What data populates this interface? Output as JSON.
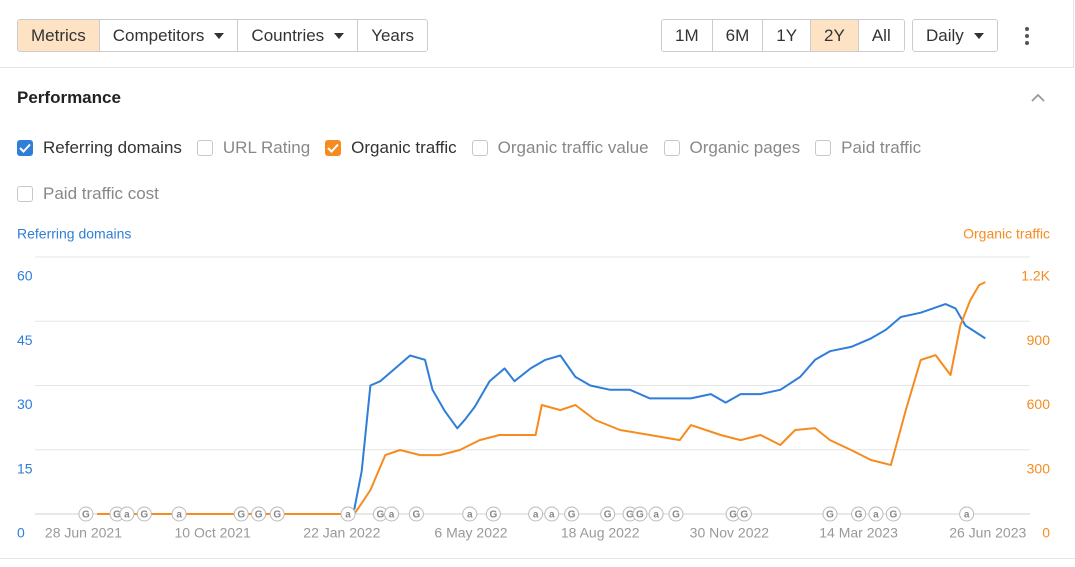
{
  "toolbar": {
    "filters": [
      {
        "label": "Metrics",
        "active": true
      },
      {
        "label": "Competitors",
        "dropdown": true
      },
      {
        "label": "Countries",
        "dropdown": true
      },
      {
        "label": "Years"
      }
    ],
    "ranges": [
      {
        "label": "1M"
      },
      {
        "label": "6M"
      },
      {
        "label": "1Y"
      },
      {
        "label": "2Y",
        "active": true
      },
      {
        "label": "All"
      }
    ],
    "interval": {
      "label": "Daily",
      "dropdown": true
    }
  },
  "section": {
    "title": "Performance",
    "metrics": [
      {
        "label": "Referring domains",
        "checked": true,
        "color": "#2f7ed8"
      },
      {
        "label": "URL Rating",
        "checked": false
      },
      {
        "label": "Organic traffic",
        "checked": true,
        "color": "#f68b1f"
      },
      {
        "label": "Organic traffic value",
        "checked": false
      },
      {
        "label": "Organic pages",
        "checked": false
      },
      {
        "label": "Paid traffic",
        "checked": false
      },
      {
        "label": "Paid traffic cost",
        "checked": false
      }
    ]
  },
  "chart_data": {
    "type": "line",
    "grid": true,
    "xlim": [
      "2021-05-20",
      "2023-07-30"
    ],
    "xticks": [
      {
        "value": "2021-06-28",
        "label": "28 Jun 2021"
      },
      {
        "value": "2021-10-10",
        "label": "10 Oct 2021"
      },
      {
        "value": "2022-01-22",
        "label": "22 Jan 2022"
      },
      {
        "value": "2022-05-06",
        "label": "6 May 2022"
      },
      {
        "value": "2022-08-18",
        "label": "18 Aug 2022"
      },
      {
        "value": "2022-11-30",
        "label": "30 Nov 2022"
      },
      {
        "value": "2023-03-14",
        "label": "14 Mar 2023"
      },
      {
        "value": "2023-06-26",
        "label": "26 Jun 2023"
      }
    ],
    "ylim": [
      0,
      60
    ],
    "yticks": [
      0,
      15,
      30,
      45,
      60
    ],
    "y2lim": [
      0,
      1200
    ],
    "y2ticks": [
      0,
      300,
      600,
      900,
      {
        "value": 1200,
        "label": "1.2K"
      }
    ],
    "series": [
      {
        "name": "Referring domains",
        "color": "#2f7ed8",
        "x": [
          "2022-02-01",
          "2022-02-07",
          "2022-02-14",
          "2022-02-22",
          "2022-03-06",
          "2022-03-18",
          "2022-03-30",
          "2022-04-05",
          "2022-04-15",
          "2022-04-25",
          "2022-05-01",
          "2022-05-09",
          "2022-05-21",
          "2022-06-02",
          "2022-06-10",
          "2022-06-23",
          "2022-07-05",
          "2022-07-17",
          "2022-07-29",
          "2022-08-10",
          "2022-08-26",
          "2022-09-11",
          "2022-09-27",
          "2022-10-13",
          "2022-10-30",
          "2022-11-15",
          "2022-11-27",
          "2022-12-09",
          "2022-12-25",
          "2023-01-10",
          "2023-01-26",
          "2023-02-07",
          "2023-02-19",
          "2023-03-08",
          "2023-03-24",
          "2023-04-05",
          "2023-04-17",
          "2023-05-03",
          "2023-05-23",
          "2023-05-31",
          "2023-06-08",
          "2023-06-24"
        ],
        "values": [
          1,
          10,
          30,
          31,
          34,
          37,
          36,
          29,
          24,
          20,
          22,
          25,
          31,
          34,
          31,
          34,
          36,
          37,
          32,
          30,
          29,
          29,
          27,
          27,
          27,
          28,
          26,
          28,
          28,
          29,
          32,
          36,
          38,
          39,
          41,
          43,
          46,
          47,
          49,
          48,
          44,
          41
        ]
      },
      {
        "name": "Organic traffic",
        "color": "#f68b1f",
        "axis": "y2",
        "x": [
          "2021-07-09",
          "2022-02-01",
          "2022-02-06",
          "2022-02-14",
          "2022-02-26",
          "2022-03-10",
          "2022-03-26",
          "2022-04-11",
          "2022-04-27",
          "2022-05-13",
          "2022-05-29",
          "2022-06-27",
          "2022-07-02",
          "2022-07-17",
          "2022-07-29",
          "2022-08-14",
          "2022-09-03",
          "2022-09-27",
          "2022-10-21",
          "2022-10-30",
          "2022-11-11",
          "2022-11-23",
          "2022-12-09",
          "2022-12-25",
          "2023-01-10",
          "2023-01-22",
          "2023-02-07",
          "2023-02-19",
          "2023-03-08",
          "2023-03-24",
          "2023-04-09",
          "2023-04-21",
          "2023-05-03",
          "2023-05-15",
          "2023-05-27",
          "2023-06-04",
          "2023-06-12",
          "2023-06-19",
          "2023-06-24"
        ],
        "values": [
          0,
          0,
          42,
          112,
          275,
          299,
          275,
          275,
          299,
          345,
          369,
          369,
          509,
          485,
          509,
          439,
          392,
          369,
          345,
          415,
          392,
          369,
          345,
          369,
          322,
          392,
          401,
          345,
          299,
          252,
          229,
          485,
          719,
          742,
          649,
          882,
          999,
          1069,
          1083
        ]
      }
    ],
    "annotations": [
      {
        "x": "2021-06-30",
        "label": "G"
      },
      {
        "x": "2021-07-25",
        "label": "G"
      },
      {
        "x": "2021-08-02",
        "label": "a"
      },
      {
        "x": "2021-08-16",
        "label": "G"
      },
      {
        "x": "2021-09-13",
        "label": "a"
      },
      {
        "x": "2021-11-02",
        "label": "G"
      },
      {
        "x": "2021-11-16",
        "label": "G"
      },
      {
        "x": "2021-12-01",
        "label": "G"
      },
      {
        "x": "2022-01-27",
        "label": "a"
      },
      {
        "x": "2022-02-22",
        "label": "G"
      },
      {
        "x": "2022-03-03",
        "label": "a"
      },
      {
        "x": "2022-03-23",
        "label": "G"
      },
      {
        "x": "2022-05-05",
        "label": "a"
      },
      {
        "x": "2022-05-24",
        "label": "G"
      },
      {
        "x": "2022-06-27",
        "label": "a"
      },
      {
        "x": "2022-07-10",
        "label": "a"
      },
      {
        "x": "2022-07-26",
        "label": "G"
      },
      {
        "x": "2022-08-24",
        "label": "G"
      },
      {
        "x": "2022-09-11",
        "label": "G"
      },
      {
        "x": "2022-09-19",
        "label": "G"
      },
      {
        "x": "2022-10-02",
        "label": "a"
      },
      {
        "x": "2022-10-18",
        "label": "G"
      },
      {
        "x": "2022-12-03",
        "label": "G"
      },
      {
        "x": "2022-12-12",
        "label": "G"
      },
      {
        "x": "2023-02-19",
        "label": "G"
      },
      {
        "x": "2023-03-14",
        "label": "G"
      },
      {
        "x": "2023-03-28",
        "label": "a"
      },
      {
        "x": "2023-04-11",
        "label": "G"
      },
      {
        "x": "2023-06-09",
        "label": "a"
      }
    ]
  }
}
